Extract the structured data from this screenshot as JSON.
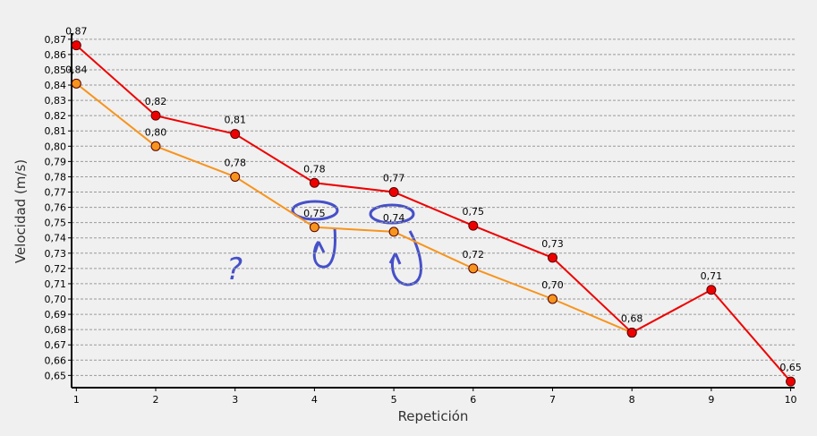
{
  "chart_data": {
    "type": "line",
    "ylabel": "Velocidad (m/s)",
    "xlabel": "Repetición",
    "x": [
      1,
      2,
      3,
      4,
      5,
      6,
      7,
      8,
      9,
      10
    ],
    "xlim": [
      0.94,
      10.05
    ],
    "xticks": [
      1,
      2,
      3,
      4,
      5,
      6,
      7,
      8,
      9,
      10
    ],
    "ylim": [
      0.642,
      0.874
    ],
    "yticks": [
      {
        "value": 0.65,
        "label": "0,65"
      },
      {
        "value": 0.66,
        "label": "0,66"
      },
      {
        "value": 0.67,
        "label": "0,67"
      },
      {
        "value": 0.68,
        "label": "0,68"
      },
      {
        "value": 0.69,
        "label": "0,69"
      },
      {
        "value": 0.7,
        "label": "0,70"
      },
      {
        "value": 0.71,
        "label": "0,71"
      },
      {
        "value": 0.72,
        "label": "0,72"
      },
      {
        "value": 0.73,
        "label": "0,73"
      },
      {
        "value": 0.74,
        "label": "0,74"
      },
      {
        "value": 0.75,
        "label": "0,75"
      },
      {
        "value": 0.76,
        "label": "0,76"
      },
      {
        "value": 0.77,
        "label": "0,77"
      },
      {
        "value": 0.78,
        "label": "0,78"
      },
      {
        "value": 0.79,
        "label": "0,79"
      },
      {
        "value": 0.8,
        "label": "0,80"
      },
      {
        "value": 0.81,
        "label": "0,81"
      },
      {
        "value": 0.82,
        "label": "0,82"
      },
      {
        "value": 0.83,
        "label": "0,83"
      },
      {
        "value": 0.84,
        "label": "0,84"
      },
      {
        "value": 0.85,
        "label": "0,85"
      },
      {
        "value": 0.86,
        "label": "0,86"
      },
      {
        "value": 0.87,
        "label": "0,87"
      }
    ],
    "grid": true,
    "series": [
      {
        "color": "#ee0000",
        "values": [
          0.866,
          0.82,
          0.808,
          0.776,
          0.77,
          0.748,
          0.727,
          0.678,
          0.706,
          0.646
        ],
        "value_labels": [
          "0,87",
          "0,82",
          "0,81",
          "0,78",
          "0,77",
          "0,75",
          "0,73",
          "0,68",
          "0,71",
          "0,65"
        ]
      },
      {
        "color": "#f7941d",
        "values": [
          0.841,
          0.8,
          0.78,
          0.747,
          0.744,
          0.72,
          0.7,
          0.678,
          null,
          null
        ],
        "value_labels": [
          "0,84",
          "0,80",
          "0,78",
          "0,75",
          "0,74",
          "0,72",
          "0,70",
          null,
          null,
          null
        ]
      }
    ],
    "annotations": [
      "?"
    ]
  }
}
